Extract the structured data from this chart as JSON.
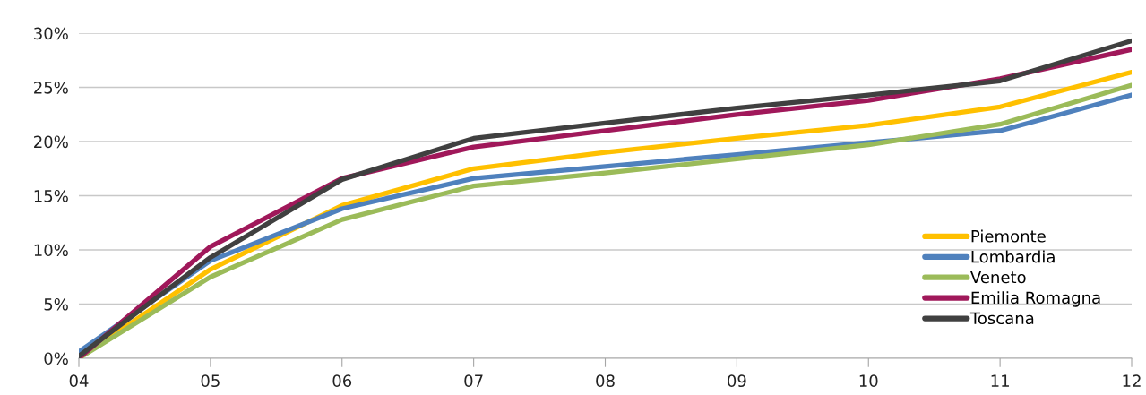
{
  "chart_data": {
    "type": "line",
    "categories": [
      "04",
      "05",
      "06",
      "07",
      "08",
      "09",
      "10",
      "11",
      "12"
    ],
    "series": [
      {
        "name": "Piemonte",
        "color": "#ffc000",
        "values": [
          0,
          8.2,
          14.1,
          17.5,
          19.0,
          20.3,
          21.5,
          23.2,
          26.4
        ]
      },
      {
        "name": "Lombardia",
        "color": "#4f81bd",
        "values": [
          0.6,
          9.0,
          13.8,
          16.6,
          17.7,
          18.8,
          19.9,
          21.0,
          24.3
        ]
      },
      {
        "name": "Veneto",
        "color": "#9bbb59",
        "values": [
          0,
          7.5,
          12.8,
          15.9,
          17.1,
          18.4,
          19.7,
          21.6,
          25.2
        ]
      },
      {
        "name": "Emilia Romagna",
        "color": "#a0185a",
        "values": [
          0,
          10.3,
          16.6,
          19.5,
          21.0,
          22.5,
          23.8,
          25.8,
          28.5
        ]
      },
      {
        "name": "Toscana",
        "color": "#404040",
        "values": [
          0.2,
          9.3,
          16.5,
          20.3,
          21.7,
          23.1,
          24.3,
          25.6,
          29.3
        ]
      }
    ],
    "ylim": [
      0,
      30
    ],
    "yticks": [
      {
        "value": 0,
        "label": "0%"
      },
      {
        "value": 5,
        "label": "5%"
      },
      {
        "value": 10,
        "label": "10%"
      },
      {
        "value": 15,
        "label": "15%"
      },
      {
        "value": 20,
        "label": "20%"
      },
      {
        "value": 25,
        "label": "25%"
      },
      {
        "value": 30,
        "label": "30%"
      }
    ],
    "grid": "y",
    "legend": "bottom right",
    "marker": "none",
    "line_style": "solid"
  }
}
